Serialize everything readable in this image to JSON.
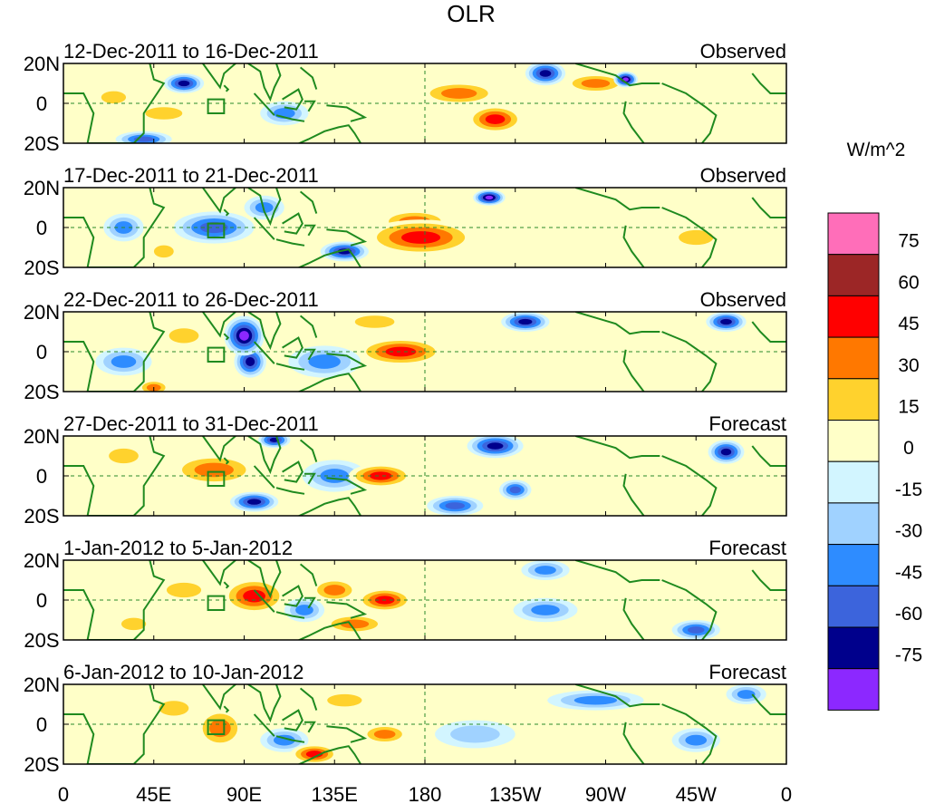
{
  "chart_data": {
    "type": "heatmap",
    "title": "OLR",
    "units_label": "W/m^2",
    "x_ticks": [
      "0",
      "45E",
      "90E",
      "135E",
      "180",
      "135W",
      "90W",
      "45W",
      "0"
    ],
    "x_tick_lons": [
      0,
      45,
      90,
      135,
      180,
      225,
      270,
      315,
      360
    ],
    "y_ticks": [
      "20N",
      "0",
      "20S"
    ],
    "y_tick_lats": [
      20,
      0,
      -20
    ],
    "lon_range": [
      0,
      360
    ],
    "lat_range": [
      -20,
      20
    ],
    "legend": {
      "levels": [
        "75",
        "60",
        "45",
        "30",
        "15",
        "0",
        "-15",
        "-30",
        "-45",
        "-60",
        "-75"
      ],
      "colors": [
        "#ff6eb9",
        "#9c2626",
        "#ff0000",
        "#ff7800",
        "#ffd22d",
        "#ffffc8",
        "#d2f5ff",
        "#a0d2ff",
        "#2e8cff",
        "#3c64dc",
        "#00008c",
        "#8c28ff"
      ]
    },
    "panels": [
      {
        "date_range": "12-Dec-2011 to 16-Dec-2011",
        "status": "Observed",
        "anomalies": [
          {
            "lon": 197,
            "lat": 5,
            "rx": 20,
            "ry": 6,
            "val": 35
          },
          {
            "lon": 215,
            "lat": -8,
            "rx": 14,
            "ry": 7,
            "val": 45
          },
          {
            "lon": 240,
            "lat": 15,
            "rx": 10,
            "ry": 6,
            "val": -60
          },
          {
            "lon": 265,
            "lat": 10,
            "rx": 16,
            "ry": 5,
            "val": 30
          },
          {
            "lon": 280,
            "lat": 12,
            "rx": 6,
            "ry": 4,
            "val": -75
          },
          {
            "lon": 60,
            "lat": 10,
            "rx": 10,
            "ry": 5,
            "val": -60
          },
          {
            "lon": 40,
            "lat": -18,
            "rx": 14,
            "ry": 4,
            "val": -45
          },
          {
            "lon": 50,
            "lat": -5,
            "rx": 15,
            "ry": 5,
            "val": 20
          },
          {
            "lon": 110,
            "lat": -5,
            "rx": 12,
            "ry": 6,
            "val": -30
          },
          {
            "lon": 25,
            "lat": 3,
            "rx": 10,
            "ry": 5,
            "val": 15
          }
        ]
      },
      {
        "date_range": "17-Dec-2011 to 21-Dec-2011",
        "status": "Observed",
        "anomalies": [
          {
            "lon": 178,
            "lat": -5,
            "rx": 28,
            "ry": 9,
            "val": 45
          },
          {
            "lon": 175,
            "lat": 3,
            "rx": 18,
            "ry": 6,
            "val": 30
          },
          {
            "lon": 140,
            "lat": -12,
            "rx": 12,
            "ry": 5,
            "val": -60
          },
          {
            "lon": 212,
            "lat": 15,
            "rx": 8,
            "ry": 4,
            "val": -75
          },
          {
            "lon": 75,
            "lat": 0,
            "rx": 20,
            "ry": 8,
            "val": -45
          },
          {
            "lon": 30,
            "lat": 0,
            "rx": 10,
            "ry": 7,
            "val": -30
          },
          {
            "lon": 315,
            "lat": -5,
            "rx": 14,
            "ry": 6,
            "val": 20
          },
          {
            "lon": 100,
            "lat": 10,
            "rx": 10,
            "ry": 6,
            "val": -30
          },
          {
            "lon": 50,
            "lat": -12,
            "rx": 8,
            "ry": 5,
            "val": 15
          }
        ]
      },
      {
        "date_range": "22-Dec-2011 to 26-Dec-2011",
        "status": "Observed",
        "anomalies": [
          {
            "lon": 90,
            "lat": 8,
            "rx": 10,
            "ry": 10,
            "val": -75
          },
          {
            "lon": 93,
            "lat": -5,
            "rx": 8,
            "ry": 8,
            "val": -60
          },
          {
            "lon": 168,
            "lat": 0,
            "rx": 22,
            "ry": 7,
            "val": 45
          },
          {
            "lon": 230,
            "lat": 15,
            "rx": 12,
            "ry": 5,
            "val": -60
          },
          {
            "lon": 330,
            "lat": 15,
            "rx": 10,
            "ry": 5,
            "val": -60
          },
          {
            "lon": 130,
            "lat": -5,
            "rx": 18,
            "ry": 8,
            "val": -30
          },
          {
            "lon": 30,
            "lat": -5,
            "rx": 14,
            "ry": 7,
            "val": -30
          },
          {
            "lon": 60,
            "lat": 8,
            "rx": 12,
            "ry": 6,
            "val": 20
          },
          {
            "lon": 155,
            "lat": 15,
            "rx": 16,
            "ry": 5,
            "val": 20
          },
          {
            "lon": 45,
            "lat": -18,
            "rx": 8,
            "ry": 4,
            "val": 30
          }
        ]
      },
      {
        "date_range": "27-Dec-2011 to 31-Dec-2011",
        "status": "Forecast",
        "anomalies": [
          {
            "lon": 75,
            "lat": 3,
            "rx": 22,
            "ry": 8,
            "val": 35
          },
          {
            "lon": 158,
            "lat": 0,
            "rx": 16,
            "ry": 6,
            "val": 45
          },
          {
            "lon": 95,
            "lat": -13,
            "rx": 12,
            "ry": 5,
            "val": -60
          },
          {
            "lon": 195,
            "lat": -15,
            "rx": 14,
            "ry": 5,
            "val": -45
          },
          {
            "lon": 215,
            "lat": 15,
            "rx": 14,
            "ry": 6,
            "val": -60
          },
          {
            "lon": 330,
            "lat": 12,
            "rx": 9,
            "ry": 6,
            "val": -60
          },
          {
            "lon": 225,
            "lat": -7,
            "rx": 8,
            "ry": 5,
            "val": -45
          },
          {
            "lon": 135,
            "lat": 0,
            "rx": 16,
            "ry": 8,
            "val": -30
          },
          {
            "lon": 105,
            "lat": 18,
            "rx": 8,
            "ry": 4,
            "val": -60
          },
          {
            "lon": 30,
            "lat": 10,
            "rx": 12,
            "ry": 6,
            "val": 15
          }
        ]
      },
      {
        "date_range": "1-Jan-2012 to 5-Jan-2012",
        "status": "Forecast",
        "anomalies": [
          {
            "lon": 95,
            "lat": 2,
            "rx": 16,
            "ry": 9,
            "val": 50
          },
          {
            "lon": 160,
            "lat": 0,
            "rx": 14,
            "ry": 6,
            "val": 45
          },
          {
            "lon": 135,
            "lat": 5,
            "rx": 12,
            "ry": 6,
            "val": 30
          },
          {
            "lon": 145,
            "lat": -12,
            "rx": 16,
            "ry": 5,
            "val": 30
          },
          {
            "lon": 240,
            "lat": -5,
            "rx": 16,
            "ry": 6,
            "val": -30
          },
          {
            "lon": 315,
            "lat": -15,
            "rx": 12,
            "ry": 5,
            "val": -45
          },
          {
            "lon": 240,
            "lat": 15,
            "rx": 12,
            "ry": 5,
            "val": -30
          },
          {
            "lon": 60,
            "lat": 5,
            "rx": 14,
            "ry": 6,
            "val": 20
          },
          {
            "lon": 120,
            "lat": -5,
            "rx": 10,
            "ry": 6,
            "val": -30
          },
          {
            "lon": 35,
            "lat": -12,
            "rx": 10,
            "ry": 5,
            "val": 15
          }
        ]
      },
      {
        "date_range": "6-Jan-2012 to 10-Jan-2012",
        "status": "Forecast",
        "anomalies": [
          {
            "lon": 78,
            "lat": -2,
            "rx": 12,
            "ry": 10,
            "val": 30
          },
          {
            "lon": 125,
            "lat": -15,
            "rx": 12,
            "ry": 5,
            "val": 45
          },
          {
            "lon": 160,
            "lat": -5,
            "rx": 12,
            "ry": 5,
            "val": 40
          },
          {
            "lon": 265,
            "lat": 12,
            "rx": 24,
            "ry": 5,
            "val": -30
          },
          {
            "lon": 315,
            "lat": -8,
            "rx": 12,
            "ry": 6,
            "val": -30
          },
          {
            "lon": 340,
            "lat": 15,
            "rx": 10,
            "ry": 5,
            "val": -30
          },
          {
            "lon": 110,
            "lat": -8,
            "rx": 12,
            "ry": 6,
            "val": -30
          },
          {
            "lon": 205,
            "lat": -5,
            "rx": 20,
            "ry": 7,
            "val": -15
          },
          {
            "lon": 55,
            "lat": 8,
            "rx": 12,
            "ry": 6,
            "val": 15
          },
          {
            "lon": 140,
            "lat": 12,
            "rx": 14,
            "ry": 5,
            "val": 15
          }
        ]
      }
    ]
  }
}
